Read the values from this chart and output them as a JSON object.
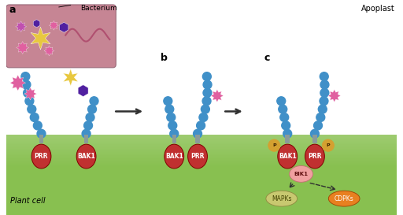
{
  "bg_color": "#ffffff",
  "ground_top_color": "#c8e8a0",
  "ground_bot_color": "#7db84a",
  "bact_fill": "#c07888",
  "bact_edge": "#906070",
  "wave_color": "#b05070",
  "yellow_star": "#e8c840",
  "pink_spiky": "#e060a0",
  "purple_hex": "#5020a0",
  "blue_ecto": "#4090c8",
  "stem_color": "#8a9a9a",
  "red_body": "#c03030",
  "red_edge": "#800000",
  "phospho_fill": "#d4a030",
  "phospho_edge": "#906010",
  "bik1_fill": "#f0a0a0",
  "bik1_edge": "#c07070",
  "mapks_fill": "#c8c870",
  "mapks_edge": "#908840",
  "cdpks_fill": "#e88020",
  "cdpks_edge": "#a04000",
  "arrow_color": "#303030",
  "title_a": "a",
  "title_b": "b",
  "title_c": "c",
  "lbl_bacterium": "Bacterium",
  "lbl_apoplast": "Apoplast",
  "lbl_plant": "Plant cell",
  "lbl_PRR": "PRR",
  "lbl_BAK1": "BAK1",
  "lbl_BIK1": "BIK1",
  "lbl_MAPKs": "MAPKs",
  "lbl_CDPKs": "CDPKs",
  "lbl_P": "P"
}
